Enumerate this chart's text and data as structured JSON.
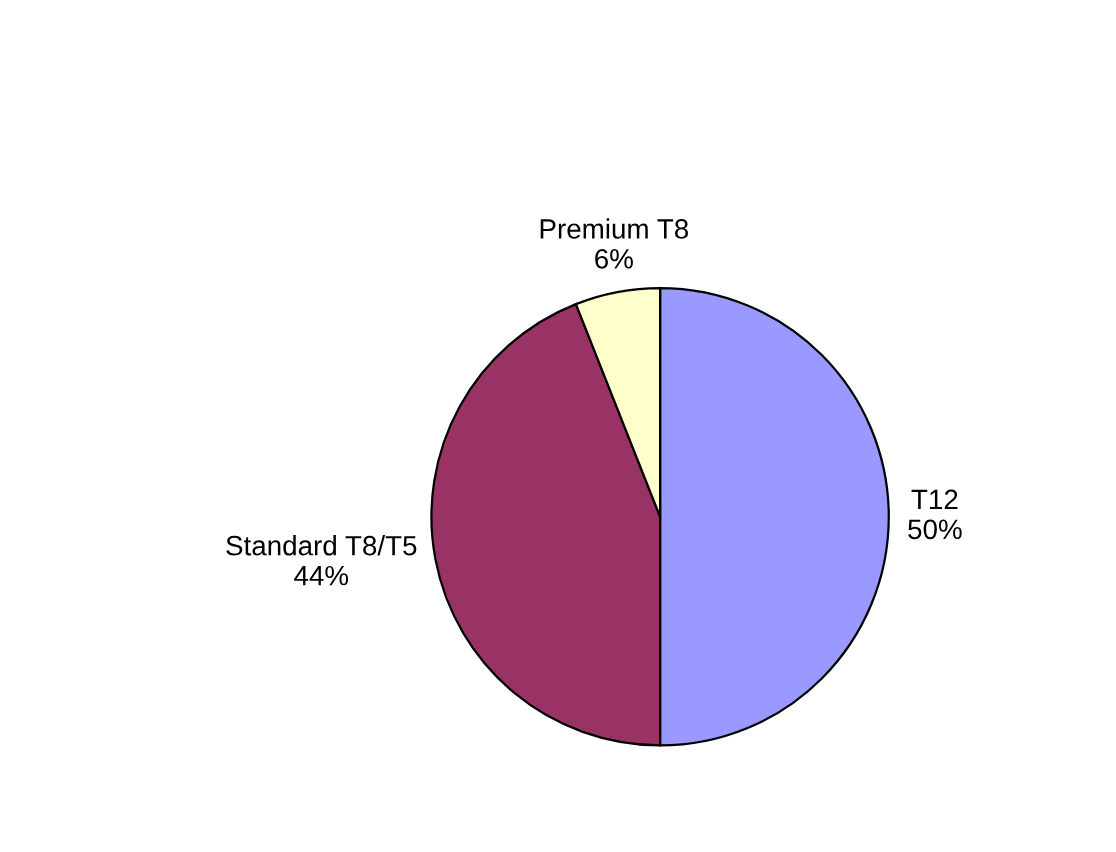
{
  "chart_data": {
    "type": "pie",
    "categories": [
      "T12",
      "Standard T8/T5",
      "Premium T8"
    ],
    "values": [
      50,
      44,
      6
    ],
    "value_labels": [
      "50%",
      "44%",
      "6%"
    ],
    "colors": [
      "#9999ff",
      "#993366",
      "#ffffcc"
    ],
    "legend": false
  }
}
